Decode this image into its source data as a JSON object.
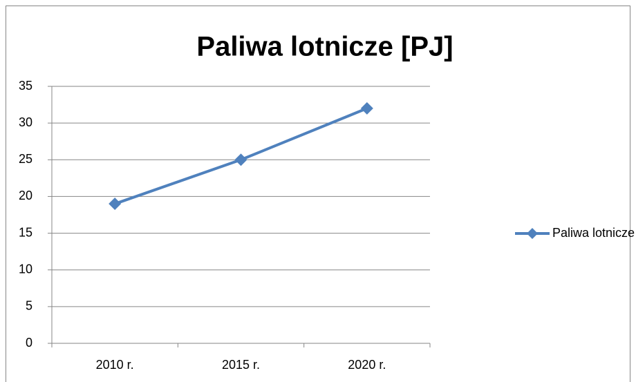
{
  "chart_data": {
    "type": "line",
    "title": "Paliwa lotnicze [PJ]",
    "categories": [
      "2010 r.",
      "2015 r.",
      "2020 r."
    ],
    "series": [
      {
        "name": "Paliwa lotnicze [PJ]",
        "color": "#4f81bd",
        "values": [
          19,
          25,
          32
        ]
      }
    ],
    "ylim": [
      0,
      35
    ],
    "yticks": [
      0,
      5,
      10,
      15,
      20,
      25,
      30,
      35
    ],
    "grid": true,
    "legend": "right"
  }
}
